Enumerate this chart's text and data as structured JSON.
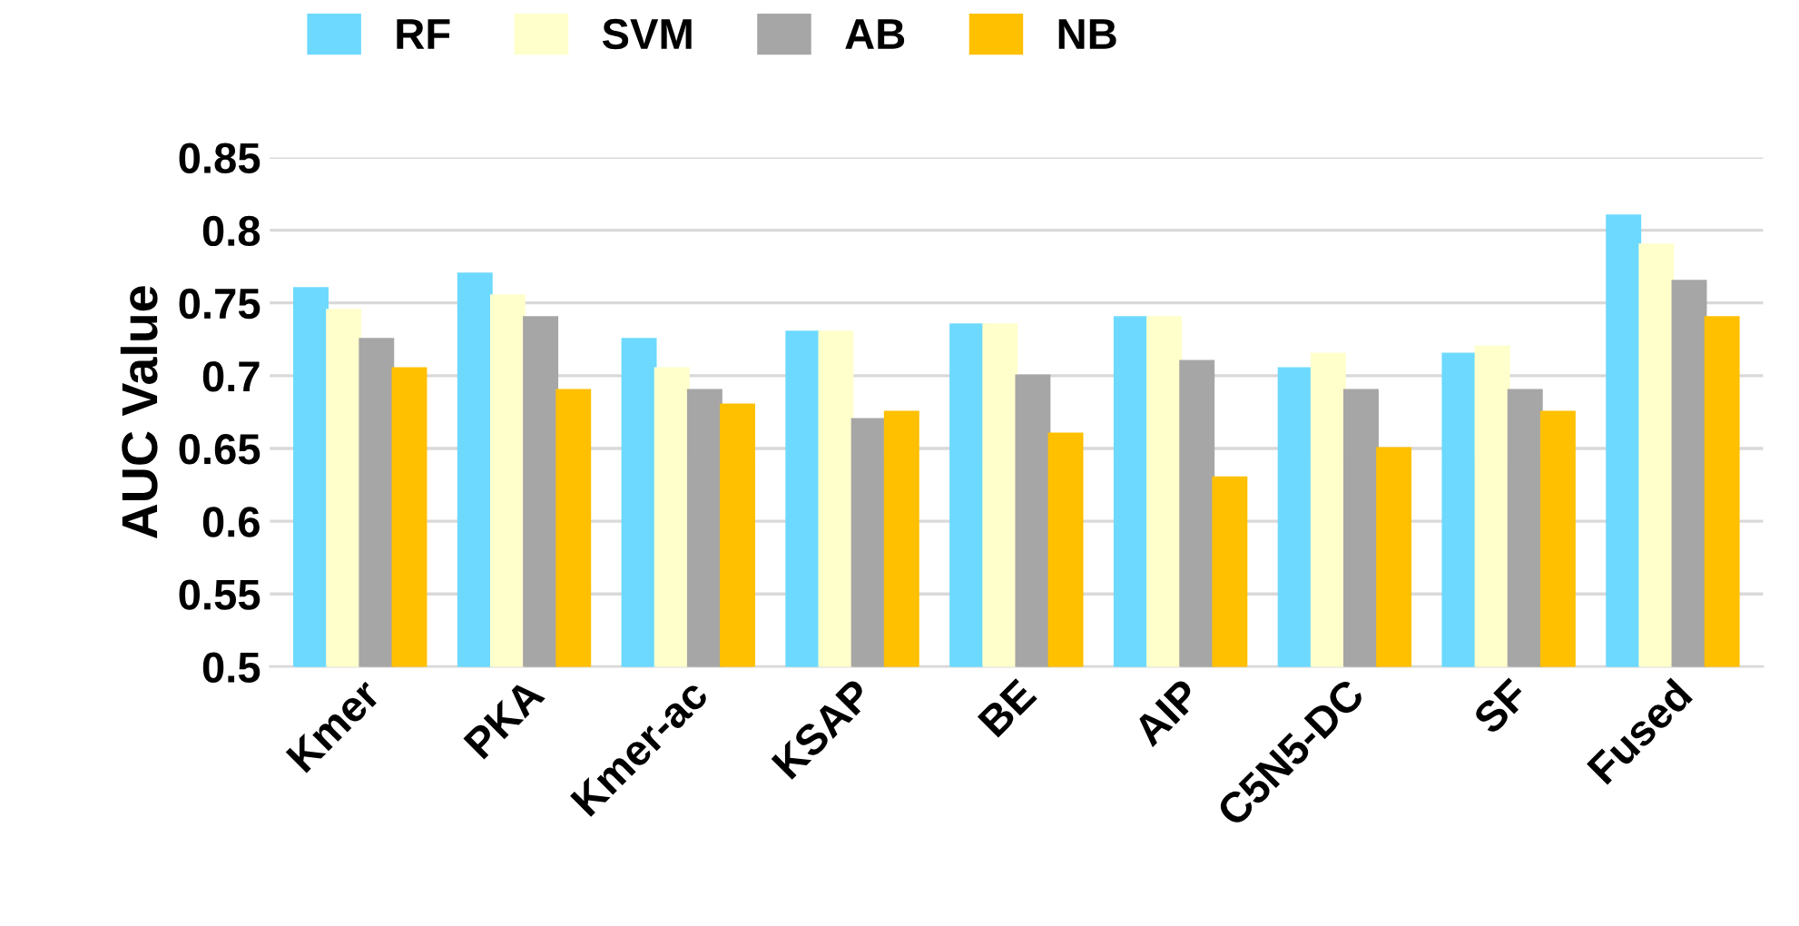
{
  "chart_data": {
    "type": "bar",
    "ylabel": "AUC Value",
    "categories": [
      "Kmer",
      "PKA",
      "Kmer-ac",
      "KSAP",
      "BE",
      "AIP",
      "C5N5-DC",
      "SF",
      "Fused"
    ],
    "series": [
      {
        "name": "RF",
        "color": "#6dd9ff",
        "values": [
          0.76,
          0.77,
          0.725,
          0.73,
          0.735,
          0.74,
          0.705,
          0.715,
          0.81
        ]
      },
      {
        "name": "SVM",
        "color": "#ffffcc",
        "values": [
          0.745,
          0.755,
          0.705,
          0.73,
          0.735,
          0.74,
          0.715,
          0.72,
          0.79
        ]
      },
      {
        "name": "AB",
        "color": "#a6a6a6",
        "values": [
          0.725,
          0.74,
          0.69,
          0.67,
          0.7,
          0.71,
          0.69,
          0.69,
          0.765
        ]
      },
      {
        "name": "NB",
        "color": "#ffc000",
        "values": [
          0.705,
          0.69,
          0.68,
          0.675,
          0.66,
          0.63,
          0.65,
          0.675,
          0.74
        ]
      }
    ],
    "ylim": [
      0.5,
      0.85
    ],
    "yticks": [
      0.5,
      0.55,
      0.6,
      0.65,
      0.7,
      0.75,
      0.8,
      0.85
    ],
    "grid": "y",
    "legend": "top left"
  }
}
